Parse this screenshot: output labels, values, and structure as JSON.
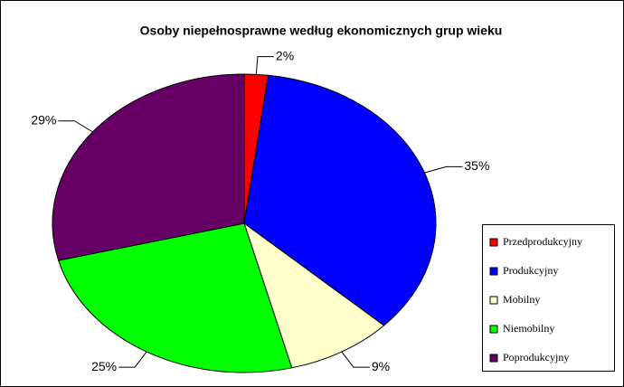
{
  "chart_data": {
    "type": "pie",
    "title": "Osoby niepełnosprawne według ekonomicznych grup wieku",
    "categories": [
      "Przedprodukcyjny",
      "Produkcyjny",
      "Mobilny",
      "Niemobilny",
      "Poprodukcyjny"
    ],
    "values": [
      2,
      35,
      9,
      25,
      29
    ],
    "value_labels": [
      "2%",
      "35%",
      "9%",
      "25%",
      "29%"
    ],
    "colors": [
      "#ff0000",
      "#0000ff",
      "#ffffcc",
      "#00ff00",
      "#660066"
    ],
    "legend": "right"
  }
}
